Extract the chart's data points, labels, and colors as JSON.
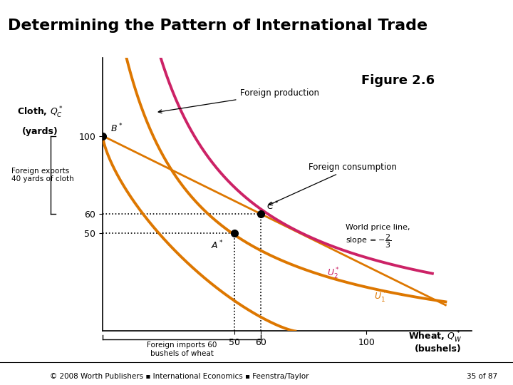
{
  "title": "Determining the Pattern of International Trade",
  "title_bg": "#4472C4",
  "title_color": "black",
  "figure_label": "Figure 2.6",
  "footer_text": "© 2008 Worth Publishers ▪ International Economics ▪ Feenstra/Taylor",
  "footer_right": "35 of 87",
  "xlim": [
    0,
    140
  ],
  "ylim": [
    0,
    140
  ],
  "point_B": [
    0,
    100
  ],
  "point_A": [
    50,
    50
  ],
  "point_C": [
    60,
    60
  ],
  "orange": "#DD7700",
  "pink": "#CC2266",
  "bg_color": "white"
}
